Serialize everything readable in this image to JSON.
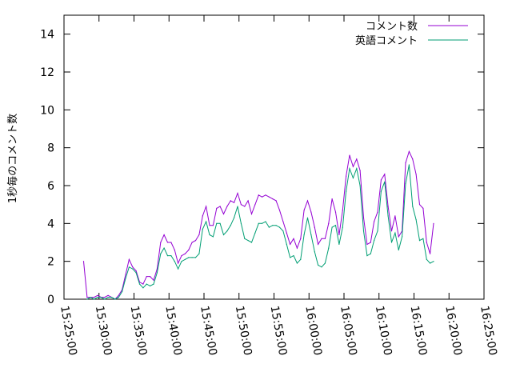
{
  "chart_data": {
    "type": "line",
    "title": "",
    "xlabel": "",
    "ylabel": "1秒毎のコメント数",
    "xlim": [
      "15:25:00",
      "16:25:00"
    ],
    "ylim": [
      0,
      15
    ],
    "y_ticks": [
      0,
      2,
      4,
      6,
      8,
      10,
      12,
      14
    ],
    "x_ticks": [
      "15:25:00",
      "15:30:00",
      "15:35:00",
      "15:40:00",
      "15:45:00",
      "15:50:00",
      "15:55:00",
      "16:00:00",
      "16:05:00",
      "16:10:00",
      "16:15:00",
      "16:20:00",
      "16:25:00"
    ],
    "grid": false,
    "legend_position": "top-right",
    "series": [
      {
        "name": "コメント数",
        "color": "#9400d3",
        "points": [
          [
            "15:27:48",
            2.0
          ],
          [
            "15:28:18",
            0.1
          ],
          [
            "15:28:48",
            0.1
          ],
          [
            "15:29:18",
            0.1
          ],
          [
            "15:29:48",
            0.2
          ],
          [
            "15:30:18",
            0.1
          ],
          [
            "15:30:48",
            0.1
          ],
          [
            "15:31:18",
            0.2
          ],
          [
            "15:31:48",
            0.1
          ],
          [
            "15:32:18",
            0.0
          ],
          [
            "15:32:48",
            0.2
          ],
          [
            "15:33:18",
            0.5
          ],
          [
            "15:33:48",
            1.3
          ],
          [
            "15:34:18",
            2.1
          ],
          [
            "15:34:48",
            1.7
          ],
          [
            "15:35:18",
            1.5
          ],
          [
            "15:35:48",
            0.9
          ],
          [
            "15:36:18",
            0.8
          ],
          [
            "15:36:48",
            1.2
          ],
          [
            "15:37:18",
            1.2
          ],
          [
            "15:37:48",
            1.0
          ],
          [
            "15:38:18",
            1.6
          ],
          [
            "15:38:48",
            3.0
          ],
          [
            "15:39:18",
            3.4
          ],
          [
            "15:39:48",
            3.0
          ],
          [
            "15:40:18",
            3.0
          ],
          [
            "15:40:48",
            2.6
          ],
          [
            "15:41:18",
            1.9
          ],
          [
            "15:41:48",
            2.3
          ],
          [
            "15:42:18",
            2.4
          ],
          [
            "15:42:48",
            2.6
          ],
          [
            "15:43:18",
            3.0
          ],
          [
            "15:43:48",
            3.1
          ],
          [
            "15:44:18",
            3.4
          ],
          [
            "15:44:48",
            4.4
          ],
          [
            "15:45:18",
            4.9
          ],
          [
            "15:45:48",
            3.9
          ],
          [
            "15:46:18",
            3.9
          ],
          [
            "15:46:48",
            4.8
          ],
          [
            "15:47:18",
            4.9
          ],
          [
            "15:47:48",
            4.5
          ],
          [
            "15:48:18",
            4.9
          ],
          [
            "15:48:48",
            5.2
          ],
          [
            "15:49:18",
            5.1
          ],
          [
            "15:49:48",
            5.6
          ],
          [
            "15:50:18",
            5.0
          ],
          [
            "15:50:48",
            4.9
          ],
          [
            "15:51:18",
            5.2
          ],
          [
            "15:51:48",
            4.5
          ],
          [
            "15:52:18",
            5.0
          ],
          [
            "15:52:48",
            5.5
          ],
          [
            "15:53:18",
            5.4
          ],
          [
            "15:53:48",
            5.5
          ],
          [
            "15:54:18",
            5.4
          ],
          [
            "15:54:48",
            5.3
          ],
          [
            "15:55:18",
            5.2
          ],
          [
            "15:55:48",
            4.7
          ],
          [
            "15:56:18",
            4.1
          ],
          [
            "15:56:48",
            3.5
          ],
          [
            "15:57:18",
            2.9
          ],
          [
            "15:57:48",
            3.2
          ],
          [
            "15:58:18",
            2.7
          ],
          [
            "15:58:48",
            3.2
          ],
          [
            "15:59:18",
            4.7
          ],
          [
            "15:59:48",
            5.2
          ],
          [
            "16:00:18",
            4.6
          ],
          [
            "16:00:48",
            3.8
          ],
          [
            "16:01:18",
            2.9
          ],
          [
            "16:01:48",
            3.2
          ],
          [
            "16:02:18",
            3.2
          ],
          [
            "16:02:48",
            4.0
          ],
          [
            "16:03:18",
            5.3
          ],
          [
            "16:03:48",
            4.6
          ],
          [
            "16:04:18",
            3.4
          ],
          [
            "16:04:48",
            4.7
          ],
          [
            "16:05:18",
            6.5
          ],
          [
            "16:05:48",
            7.6
          ],
          [
            "16:06:18",
            7.0
          ],
          [
            "16:06:48",
            7.4
          ],
          [
            "16:07:18",
            6.8
          ],
          [
            "16:07:48",
            4.3
          ],
          [
            "16:08:18",
            2.9
          ],
          [
            "16:08:48",
            3.0
          ],
          [
            "16:09:18",
            4.1
          ],
          [
            "16:09:48",
            4.6
          ],
          [
            "16:10:18",
            6.3
          ],
          [
            "16:10:48",
            6.6
          ],
          [
            "16:11:18",
            4.9
          ],
          [
            "16:11:48",
            3.6
          ],
          [
            "16:12:18",
            4.4
          ],
          [
            "16:12:48",
            3.3
          ],
          [
            "16:13:18",
            3.6
          ],
          [
            "16:13:48",
            7.2
          ],
          [
            "16:14:18",
            7.8
          ],
          [
            "16:14:48",
            7.4
          ],
          [
            "16:15:18",
            6.6
          ],
          [
            "16:15:48",
            5.0
          ],
          [
            "16:16:18",
            4.8
          ],
          [
            "16:16:48",
            3.0
          ],
          [
            "16:17:18",
            2.4
          ],
          [
            "16:17:48",
            4.0
          ]
        ]
      },
      {
        "name": "英語コメント",
        "color": "#009e73",
        "points": [
          [
            "15:28:18",
            0.0
          ],
          [
            "15:28:48",
            0.1
          ],
          [
            "15:29:18",
            0.0
          ],
          [
            "15:29:48",
            0.1
          ],
          [
            "15:30:18",
            0.1
          ],
          [
            "15:30:48",
            0.0
          ],
          [
            "15:31:18",
            0.1
          ],
          [
            "15:31:48",
            0.1
          ],
          [
            "15:32:18",
            0.0
          ],
          [
            "15:32:48",
            0.1
          ],
          [
            "15:33:18",
            0.4
          ],
          [
            "15:33:48",
            1.1
          ],
          [
            "15:34:18",
            1.7
          ],
          [
            "15:34:48",
            1.6
          ],
          [
            "15:35:18",
            1.4
          ],
          [
            "15:35:48",
            0.8
          ],
          [
            "15:36:18",
            0.6
          ],
          [
            "15:36:48",
            0.8
          ],
          [
            "15:37:18",
            0.7
          ],
          [
            "15:37:48",
            0.8
          ],
          [
            "15:38:18",
            1.4
          ],
          [
            "15:38:48",
            2.4
          ],
          [
            "15:39:18",
            2.7
          ],
          [
            "15:39:48",
            2.3
          ],
          [
            "15:40:18",
            2.3
          ],
          [
            "15:40:48",
            2.0
          ],
          [
            "15:41:18",
            1.6
          ],
          [
            "15:41:48",
            2.0
          ],
          [
            "15:42:18",
            2.1
          ],
          [
            "15:42:48",
            2.2
          ],
          [
            "15:43:18",
            2.2
          ],
          [
            "15:43:48",
            2.2
          ],
          [
            "15:44:18",
            2.4
          ],
          [
            "15:44:48",
            3.7
          ],
          [
            "15:45:18",
            4.1
          ],
          [
            "15:45:48",
            3.4
          ],
          [
            "15:46:18",
            3.3
          ],
          [
            "15:46:48",
            4.0
          ],
          [
            "15:47:18",
            4.0
          ],
          [
            "15:47:48",
            3.4
          ],
          [
            "15:48:18",
            3.6
          ],
          [
            "15:48:48",
            3.9
          ],
          [
            "15:49:18",
            4.3
          ],
          [
            "15:49:48",
            4.9
          ],
          [
            "15:50:18",
            4.0
          ],
          [
            "15:50:48",
            3.2
          ],
          [
            "15:51:18",
            3.1
          ],
          [
            "15:51:48",
            3.0
          ],
          [
            "15:52:18",
            3.5
          ],
          [
            "15:52:48",
            4.0
          ],
          [
            "15:53:18",
            4.0
          ],
          [
            "15:53:48",
            4.1
          ],
          [
            "15:54:18",
            3.8
          ],
          [
            "15:54:48",
            3.9
          ],
          [
            "15:55:18",
            3.9
          ],
          [
            "15:55:48",
            3.8
          ],
          [
            "15:56:18",
            3.6
          ],
          [
            "15:56:48",
            2.9
          ],
          [
            "15:57:18",
            2.2
          ],
          [
            "15:57:48",
            2.3
          ],
          [
            "15:58:18",
            1.9
          ],
          [
            "15:58:48",
            2.1
          ],
          [
            "15:59:18",
            3.4
          ],
          [
            "15:59:48",
            4.3
          ],
          [
            "16:00:18",
            3.4
          ],
          [
            "16:00:48",
            2.5
          ],
          [
            "16:01:18",
            1.8
          ],
          [
            "16:01:48",
            1.7
          ],
          [
            "16:02:18",
            1.9
          ],
          [
            "16:02:48",
            2.7
          ],
          [
            "16:03:18",
            3.8
          ],
          [
            "16:03:48",
            3.9
          ],
          [
            "16:04:18",
            2.9
          ],
          [
            "16:04:48",
            3.8
          ],
          [
            "16:05:18",
            5.7
          ],
          [
            "16:05:48",
            6.9
          ],
          [
            "16:06:18",
            6.4
          ],
          [
            "16:06:48",
            6.9
          ],
          [
            "16:07:18",
            6.0
          ],
          [
            "16:07:48",
            3.6
          ],
          [
            "16:08:18",
            2.3
          ],
          [
            "16:08:48",
            2.4
          ],
          [
            "16:09:18",
            3.1
          ],
          [
            "16:09:48",
            3.6
          ],
          [
            "16:10:18",
            5.7
          ],
          [
            "16:10:48",
            6.2
          ],
          [
            "16:11:18",
            4.4
          ],
          [
            "16:11:48",
            3.0
          ],
          [
            "16:12:18",
            3.5
          ],
          [
            "16:12:48",
            2.6
          ],
          [
            "16:13:18",
            3.3
          ],
          [
            "16:13:48",
            6.1
          ],
          [
            "16:14:18",
            7.1
          ],
          [
            "16:14:48",
            4.9
          ],
          [
            "16:15:18",
            4.2
          ],
          [
            "16:15:48",
            3.1
          ],
          [
            "16:16:18",
            3.2
          ],
          [
            "16:16:48",
            2.1
          ],
          [
            "16:17:18",
            1.9
          ],
          [
            "16:17:48",
            2.0
          ]
        ]
      }
    ]
  }
}
